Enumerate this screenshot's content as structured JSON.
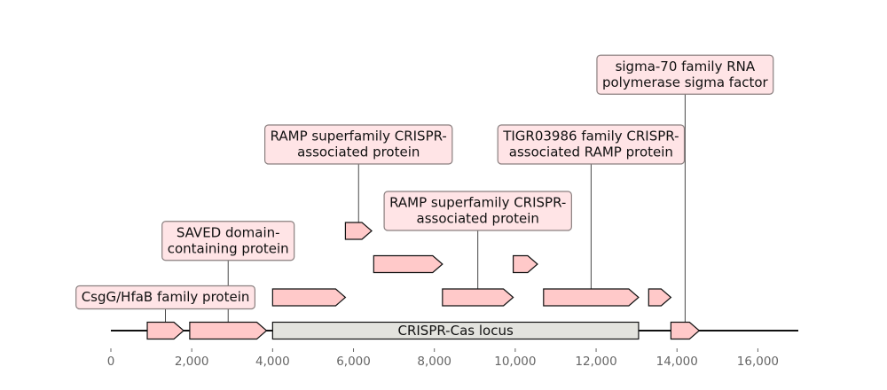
{
  "colors": {
    "feature_fill": "#ffc9c9",
    "feature_stroke": "#111111",
    "region_fill": "#e3e3de",
    "label_box_fill": "#ffe4e6",
    "label_box_stroke": "#8a7f7f",
    "axis_color": "#111111",
    "tick_text": "#666666"
  },
  "chart_data": {
    "type": "genome-map",
    "xlim": [
      0,
      17000
    ],
    "axis_ticks": [
      0,
      2000,
      4000,
      6000,
      8000,
      10000,
      12000,
      14000,
      16000
    ],
    "axis_tick_labels": [
      "0",
      "2,000",
      "4,000",
      "6,000",
      "8,000",
      "10,000",
      "12,000",
      "14,000",
      "16,000"
    ],
    "region": {
      "label": "CRISPR-Cas locus",
      "start": 4000,
      "end": 13050
    },
    "features": [
      {
        "start": 900,
        "end": 1800,
        "strand": 1,
        "level": 0,
        "label_lines": [
          "CsgG/HfaB family protein"
        ],
        "label_level": 1
      },
      {
        "start": 1950,
        "end": 3850,
        "strand": 1,
        "level": 0,
        "label_lines": [
          "SAVED domain-",
          "containing protein"
        ],
        "label_level": 2.7
      },
      {
        "start": 13850,
        "end": 14550,
        "strand": 1,
        "level": 0,
        "label_lines": [
          "sigma-70 family RNA",
          "polymerase sigma factor"
        ],
        "label_level": 7.7
      },
      {
        "start": 4000,
        "end": 5800,
        "strand": 1,
        "level": 1
      },
      {
        "start": 8200,
        "end": 9950,
        "strand": 1,
        "level": 1,
        "label_lines": [
          "RAMP superfamily CRISPR-",
          "associated protein"
        ],
        "label_level": 3.6
      },
      {
        "start": 10700,
        "end": 13050,
        "strand": 1,
        "level": 1,
        "label_lines": [
          "TIGR03986 family CRISPR-",
          "associated RAMP protein"
        ],
        "label_level": 5.6
      },
      {
        "start": 13300,
        "end": 13850,
        "strand": 1,
        "level": 1
      },
      {
        "start": 6500,
        "end": 8200,
        "strand": 1,
        "level": 2
      },
      {
        "start": 9950,
        "end": 10550,
        "strand": 1,
        "level": 2
      },
      {
        "start": 5800,
        "end": 6450,
        "strand": 1,
        "level": 3,
        "label_lines": [
          "RAMP superfamily CRISPR-",
          "associated protein"
        ],
        "label_level": 5.6
      }
    ]
  }
}
